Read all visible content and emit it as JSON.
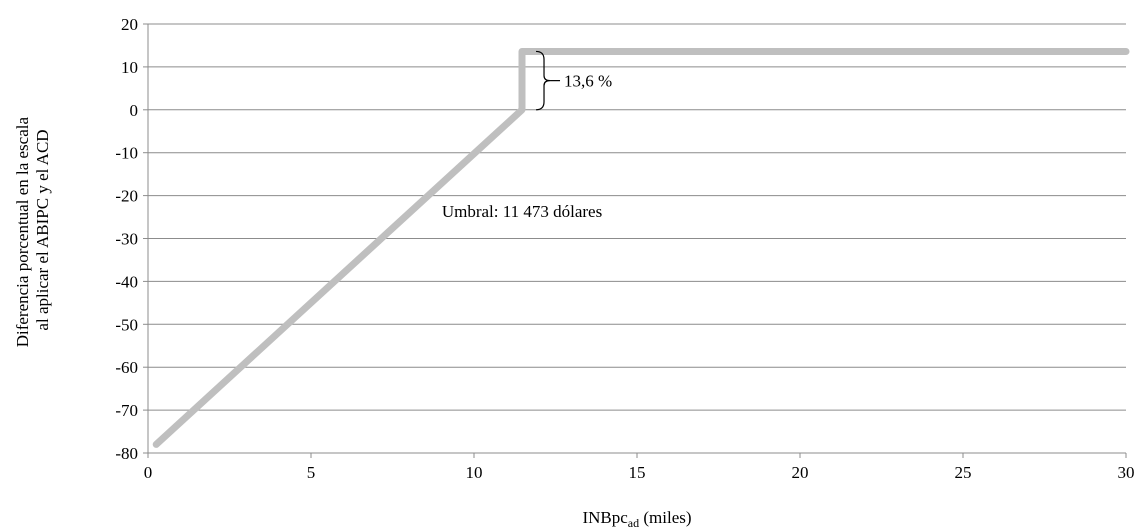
{
  "chart_data": {
    "type": "line",
    "xlabel_main": "INBpc",
    "xlabel_sub": "ad",
    "xlabel_tail": " (miles)",
    "ylabel_lines": [
      "Diferencia porcentual en la escala",
      "al aplicar el ABIPC y el ACD"
    ],
    "xlim": [
      0,
      30
    ],
    "ylim": [
      -80,
      20
    ],
    "x_ticks": [
      0,
      5,
      10,
      15,
      20,
      25,
      30
    ],
    "y_ticks": [
      20,
      10,
      0,
      -10,
      -20,
      -30,
      -40,
      -50,
      -60,
      -70,
      -80
    ],
    "grid": "horizontal",
    "series": [
      {
        "color": "#bfbfbf",
        "points": [
          [
            0.25,
            -78
          ],
          [
            11.473,
            0
          ],
          [
            11.473,
            13.6
          ],
          [
            30,
            13.6
          ]
        ]
      }
    ],
    "annotations": {
      "bracket_label": "13,6 %",
      "bracket_range": [
        0,
        13.6
      ],
      "threshold_label": "Umbral:  11 473 dólares",
      "threshold_label_pos": [
        11.473,
        -25
      ]
    }
  }
}
